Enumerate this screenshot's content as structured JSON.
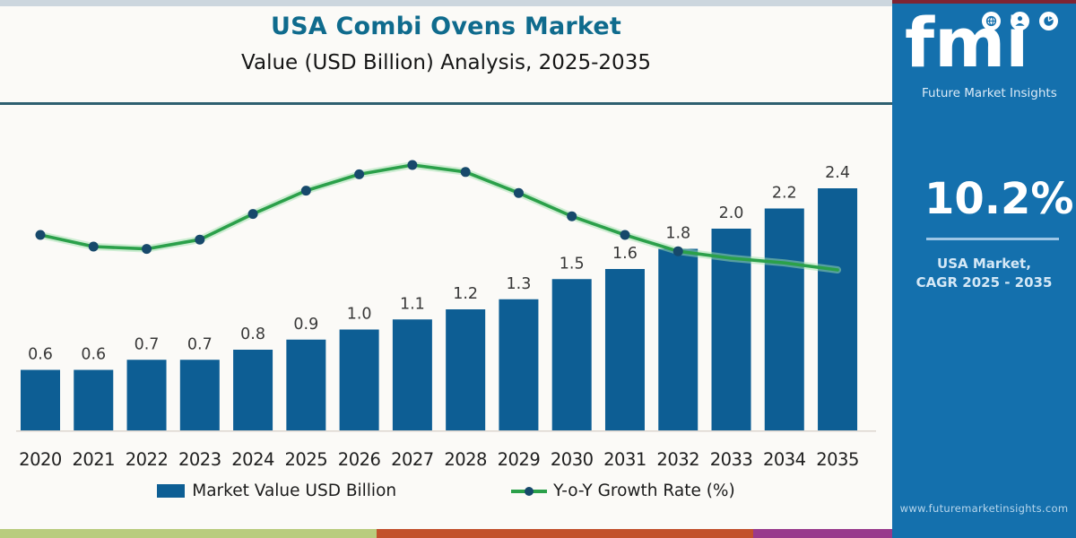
{
  "title": "USA Combi Ovens Market",
  "subtitle": "Value (USD Billion) Analysis, 2025-2035",
  "chart_data": {
    "type": "combo",
    "categories": [
      "2020",
      "2021",
      "2022",
      "2023",
      "2024",
      "2025",
      "2026",
      "2027",
      "2028",
      "2029",
      "2030",
      "2031",
      "2032",
      "2033",
      "2034",
      "2035"
    ],
    "series": [
      {
        "name": "Market Value USD Billion",
        "type": "bar",
        "color": "#0d5e94",
        "values": [
          0.6,
          0.6,
          0.7,
          0.7,
          0.8,
          0.9,
          1.0,
          1.1,
          1.2,
          1.3,
          1.5,
          1.6,
          1.8,
          2.0,
          2.2,
          2.4
        ]
      },
      {
        "name": "Y-o-Y Growth Rate (%)",
        "type": "line",
        "color": "#2ba04a",
        "marker_color": "#17496b",
        "values_estimated_pct": [
          8.0,
          7.5,
          7.4,
          7.8,
          8.9,
          9.9,
          10.6,
          11.0,
          10.7,
          9.8,
          8.8,
          8.0,
          7.3,
          7.0,
          6.8,
          6.5
        ],
        "note": "secondary axis is unlabeled in the chart; line values estimated from curve position"
      }
    ],
    "ylim": [
      0,
      2.6
    ],
    "grid": false,
    "value_labels_shown": true,
    "legend_position": "bottom"
  },
  "legend": [
    {
      "label": "Market Value USD Billion"
    },
    {
      "label": "Y-o-Y Growth Rate (%)"
    }
  ],
  "sidebar": {
    "logo_text": "fmi",
    "logo_tagline": "Future Market Insights",
    "logo_icons": [
      "globe-icon",
      "person-icon",
      "pie-chart-icon"
    ],
    "cagr_value": "10.2%",
    "cagr_label_line1": "USA Market,",
    "cagr_label_line2": "CAGR 2025 - 2035",
    "website": "www.futuremarketinsights.com"
  },
  "footer_stripe_colors": [
    "#b9cc7e",
    "#c2512c",
    "#993a8c"
  ],
  "colors": {
    "sidebar_blue": "#1470ad",
    "bar_blue": "#0d5e94",
    "line_green": "#2ba04a",
    "marker_navy": "#17496b",
    "title_teal": "#0f6b8d",
    "divider_teal": "#2e5f70",
    "sidebar_top_accent_maroon": "#7e2433"
  }
}
